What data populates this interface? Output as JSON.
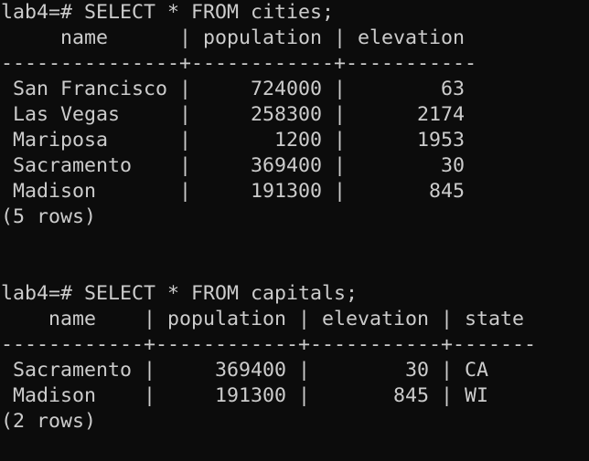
{
  "terminal": {
    "lines": [
      "lab4=# SELECT * FROM cities;",
      "     name      | population | elevation",
      "---------------+------------+-----------",
      " San Francisco |     724000 |        63",
      " Las Vegas     |     258300 |      2174",
      " Mariposa      |       1200 |      1953",
      " Sacramento    |     369400 |        30",
      " Madison       |     191300 |       845",
      "(5 rows)",
      "",
      "",
      "lab4=# SELECT * FROM capitals;",
      "    name    | population | elevation | state",
      "------------+------------+-----------+-------",
      " Sacramento |     369400 |        30 | CA",
      " Madison    |     191300 |       845 | WI",
      "(2 rows)"
    ]
  }
}
